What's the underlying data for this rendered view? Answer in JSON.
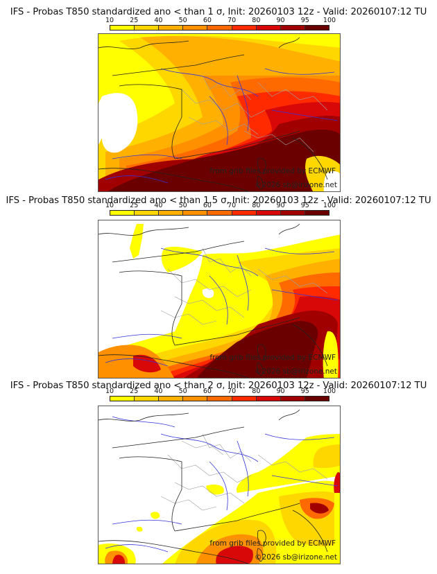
{
  "colorbar": {
    "ticks": [
      "10",
      "25",
      "40",
      "50",
      "60",
      "70",
      "80",
      "90",
      "95",
      "100"
    ],
    "colors": [
      "#ffff00",
      "#ffd700",
      "#ffb000",
      "#ff9000",
      "#ff6a00",
      "#ff2a00",
      "#d80808",
      "#a00000",
      "#6a0000"
    ]
  },
  "panels": [
    {
      "title": "IFS - Probas T850  standardized ano < than 1 σ, Init: 20260103 12z - Valid: 20260107:12 TU",
      "threshold": "1 σ",
      "credit_source": "from grib files provided by ECMWF",
      "credit_copyright": "©2026 sb@irizone.net"
    },
    {
      "title": "IFS - Probas T850  standardized ano < than 1.5 σ, Init: 20260103 12z - Valid: 20260107:12 TU",
      "threshold": "1.5 σ",
      "credit_source": "from grib files provided by ECMWF",
      "credit_copyright": "©2026 sb@irizone.net"
    },
    {
      "title": "IFS - Probas T850  standardized ano < than 2 σ, Init: 20260103 12z - Valid: 20260107:12 TU",
      "threshold": "2 σ",
      "credit_source": "from grib files provided by ECMWF",
      "credit_copyright": "©2026 sb@irizone.net"
    }
  ],
  "map_colors": {
    "coastline": "#222222",
    "borders": "#a0a0a0",
    "rivers": "#3333dd",
    "background": "#ffffff"
  }
}
